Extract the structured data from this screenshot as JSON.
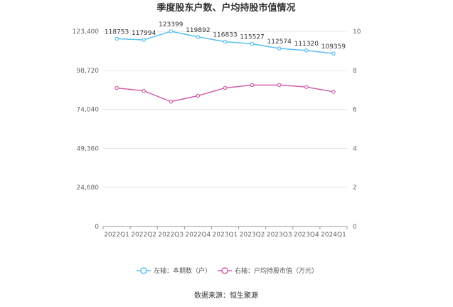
{
  "chart_data": {
    "type": "line",
    "title": "季度股东户数、户均持股市值情况",
    "categories": [
      "2022Q1",
      "2022Q2",
      "2022Q3",
      "2022Q4",
      "2023Q1",
      "2023Q2",
      "2023Q3",
      "2023Q4",
      "2024Q1"
    ],
    "y_left": {
      "ticks": [
        "0",
        "24,680",
        "49,360",
        "74,040",
        "98,720",
        "123,400"
      ],
      "ylim": [
        0,
        123400
      ]
    },
    "y_right": {
      "ticks": [
        "0",
        "2",
        "4",
        "6",
        "8",
        "10"
      ],
      "ylim": [
        0,
        10
      ]
    },
    "series": [
      {
        "name": "左轴：本期数（户）",
        "axis": "left",
        "color": "#5bc0f0",
        "values": [
          118753,
          117994,
          123399,
          119892,
          116833,
          115527,
          112574,
          111320,
          109359
        ],
        "labels": [
          "118753",
          "117994",
          "123399",
          "119892",
          "116833",
          "115527",
          "112574",
          "111320",
          "109359"
        ]
      },
      {
        "name": "右轴：户均持股市值（万元）",
        "axis": "right",
        "color": "#d45fa8",
        "values": [
          7.1,
          6.95,
          6.4,
          6.7,
          7.1,
          7.25,
          7.25,
          7.15,
          6.9
        ]
      }
    ],
    "grid": true,
    "legend_position": "bottom"
  },
  "source": "数据来源：恒生聚源"
}
